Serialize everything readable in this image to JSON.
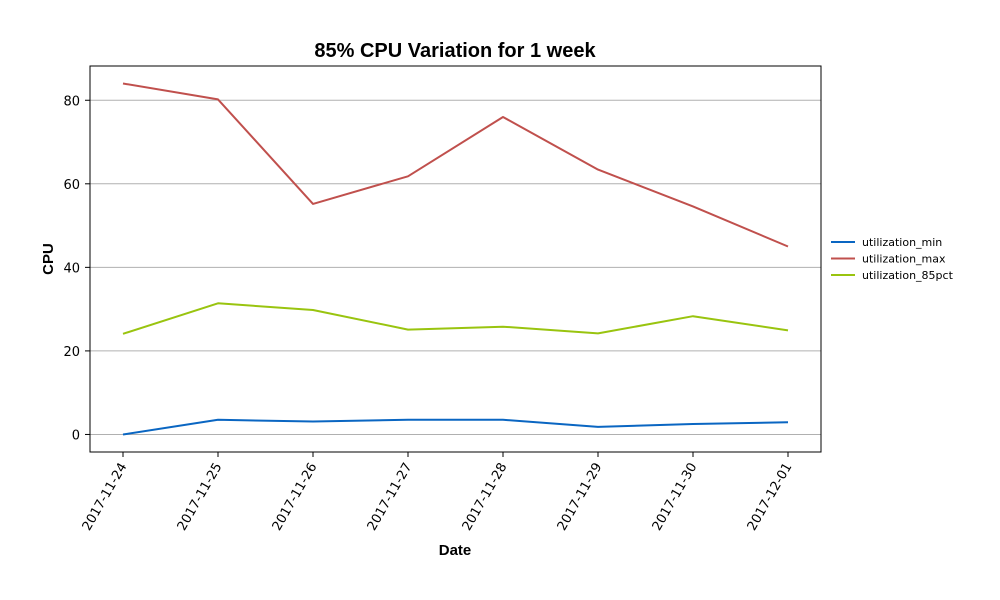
{
  "chart_data": {
    "type": "line",
    "title": "85% CPU Variation for 1 week",
    "xlabel": "Date",
    "ylabel": "CPU",
    "x": [
      "2017-11-24",
      "2017-11-25",
      "2017-11-26",
      "2017-11-27",
      "2017-11-28",
      "2017-11-29",
      "2017-11-30",
      "2017-12-01"
    ],
    "ylim": [
      -4.2,
      88.2
    ],
    "yticks": [
      0,
      20,
      40,
      60,
      80
    ],
    "grid": "horizontal",
    "legend_position": "right",
    "series": [
      {
        "name": "utilization_min",
        "color": "#0a66c2",
        "values": [
          0.0,
          3.5,
          3.1,
          3.5,
          3.5,
          1.8,
          2.5,
          2.9
        ]
      },
      {
        "name": "utilization_max",
        "color": "#c0504d",
        "values": [
          84.0,
          80.2,
          55.2,
          61.8,
          76.0,
          63.4,
          54.6,
          45.0
        ]
      },
      {
        "name": "utilization_85pct",
        "color": "#99c40f",
        "values": [
          24.1,
          31.4,
          29.8,
          25.1,
          25.8,
          24.2,
          28.3,
          24.9
        ]
      }
    ]
  }
}
